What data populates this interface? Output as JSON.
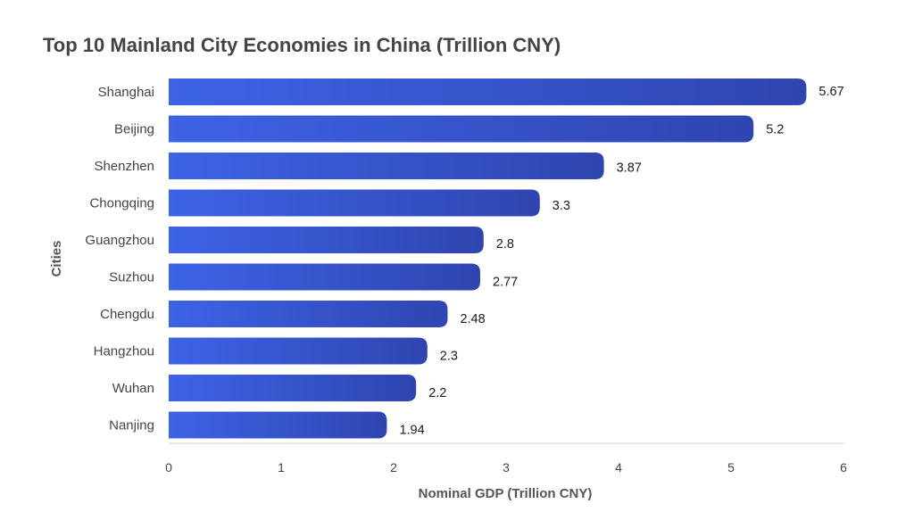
{
  "chart_data": {
    "type": "bar",
    "orientation": "horizontal",
    "title": "Top 10 Mainland City Economies in China (Trillion CNY)",
    "xlabel": "Nominal GDP (Trillion CNY)",
    "ylabel": "Cities",
    "categories": [
      "Shanghai",
      "Beijing",
      "Shenzhen",
      "Chongqing",
      "Guangzhou",
      "Suzhou",
      "Chengdu",
      "Hangzhou",
      "Wuhan",
      "Nanjing"
    ],
    "values": [
      5.67,
      5.2,
      3.87,
      3.3,
      2.8,
      2.77,
      2.48,
      2.3,
      2.2,
      1.94
    ],
    "value_labels": [
      "5.67",
      "5.2",
      "3.87",
      "3.3",
      "2.8",
      "2.77",
      "2.48",
      "2.3",
      "2.2",
      "1.94"
    ],
    "xlim": [
      0,
      6
    ],
    "xticks": [
      "0",
      "1",
      "2",
      "3",
      "4",
      "5",
      "6"
    ],
    "grid": false,
    "legend": "none",
    "colors": {
      "bar_start": "#3d63e6",
      "bar_end": "#2f45b0",
      "text": "#444444"
    }
  }
}
